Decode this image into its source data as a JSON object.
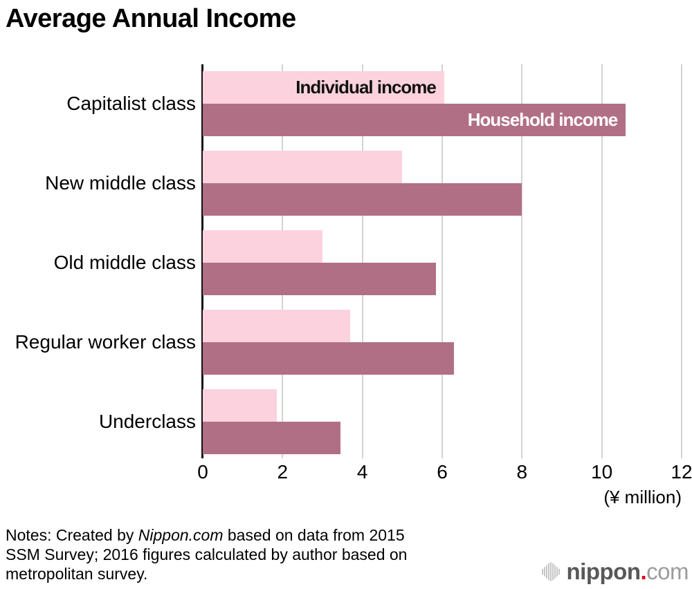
{
  "title": "Average Annual Income",
  "chart_data": {
    "type": "bar",
    "orientation": "horizontal",
    "title": "Average Annual Income",
    "categories": [
      "Capitalist class",
      "New middle class",
      "Old middle class",
      "Regular worker class",
      "Underclass"
    ],
    "series": [
      {
        "name": "Individual income",
        "color": "#fcd2de",
        "label_color": "#111111",
        "values": [
          6.05,
          5.0,
          3.0,
          3.7,
          1.85
        ]
      },
      {
        "name": "Household income",
        "color": "#b16f85",
        "label_color": "#ffffff",
        "values": [
          10.6,
          8.0,
          5.85,
          6.3,
          3.45
        ]
      }
    ],
    "xlim": [
      0,
      12
    ],
    "xticks": [
      0,
      2,
      4,
      6,
      8,
      10,
      12
    ],
    "x_unit_label": "(¥ million)",
    "grid": "vertical-gridlines",
    "gridline_color": "#d3d3d3",
    "legend_position": "inside-first-group-bars"
  },
  "notes": {
    "line1_prefix": "Notes: Created by ",
    "line1_source": "Nippon.com",
    "line1_suffix": " based on data from 2015",
    "line2": "SSM Survey; 2016 figures calculated by author based on",
    "line3": "metropolitan survey."
  },
  "logo": {
    "icon": "soundwave-circle-icon",
    "name": "nippon",
    "dot": ".",
    "tld": "com",
    "name_color": "#595757",
    "dot_color": "#e60012",
    "tld_color": "#9b9c9c"
  }
}
